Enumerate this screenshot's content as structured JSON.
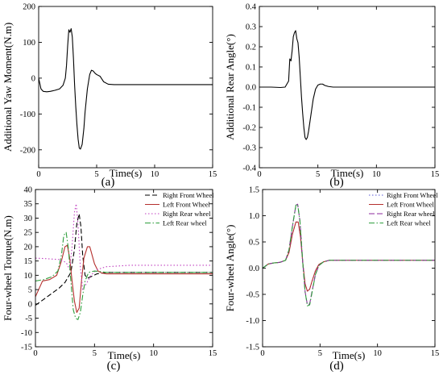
{
  "chart_data": [
    {
      "type": "line",
      "panel_label": "(a)",
      "xlabel": "Time(s)",
      "ylabel": "Additional Yaw Moment(N.m)",
      "xlim": [
        0,
        15
      ],
      "ylim": [
        -250,
        200
      ],
      "xticks": [
        0,
        5,
        10,
        15
      ],
      "yticks": [
        -200,
        -100,
        0,
        100,
        200
      ],
      "grid": false,
      "series": [
        {
          "color": "#000000",
          "dash": "",
          "x": [
            0,
            0.2,
            0.4,
            0.7,
            1.0,
            1.4,
            1.8,
            2.1,
            2.3,
            2.4,
            2.5,
            2.6,
            2.7,
            2.8,
            2.9,
            3.0,
            3.1,
            3.2,
            3.3,
            3.4,
            3.5,
            3.6,
            3.75,
            3.9,
            4.0,
            4.2,
            4.4,
            4.55,
            4.7,
            4.85,
            5.0,
            5.3,
            5.6,
            6.0,
            6.5,
            8,
            10,
            12,
            15
          ],
          "y": [
            0,
            -30,
            -37,
            -38,
            -37,
            -34,
            -30,
            -20,
            0,
            35,
            90,
            135,
            128,
            138,
            115,
            55,
            -20,
            -80,
            -130,
            -170,
            -195,
            -198,
            -185,
            -140,
            -95,
            -30,
            10,
            22,
            20,
            14,
            10,
            5,
            -10,
            -17,
            -18,
            -18,
            -18,
            -18,
            -18
          ]
        }
      ]
    },
    {
      "type": "line",
      "panel_label": "(b)",
      "xlabel": "Time(s)",
      "ylabel": "Additional Rear Angle(°)",
      "xlim": [
        0,
        15
      ],
      "ylim": [
        -0.4,
        0.4
      ],
      "xticks": [
        0,
        5,
        10,
        15
      ],
      "yticks": [
        -0.4,
        -0.3,
        -0.2,
        -0.1,
        0.0,
        0.1,
        0.2,
        0.3,
        0.4
      ],
      "grid": false,
      "series": [
        {
          "color": "#000000",
          "dash": "",
          "x": [
            0,
            1,
            1.8,
            2.2,
            2.5,
            2.6,
            2.7,
            2.8,
            2.9,
            3.0,
            3.1,
            3.2,
            3.3,
            3.4,
            3.5,
            3.6,
            3.7,
            3.8,
            3.9,
            4.0,
            4.1,
            4.2,
            4.4,
            4.6,
            4.8,
            5.0,
            5.2,
            5.4,
            5.6,
            5.9,
            6.3,
            7,
            15
          ],
          "y": [
            0,
            0,
            -0.002,
            0,
            0.03,
            0.14,
            0.13,
            0.18,
            0.25,
            0.27,
            0.28,
            0.24,
            0.22,
            0.15,
            0.05,
            -0.05,
            -0.13,
            -0.2,
            -0.25,
            -0.26,
            -0.25,
            -0.22,
            -0.14,
            -0.06,
            -0.01,
            0.01,
            0.015,
            0.015,
            0.008,
            0.003,
            0,
            0,
            0
          ]
        }
      ]
    },
    {
      "type": "line",
      "panel_label": "(c)",
      "xlabel": "Time(s)",
      "ylabel": "Four-wheel Torque(N.m)",
      "xlim": [
        0,
        15
      ],
      "ylim": [
        -15,
        40
      ],
      "xticks": [
        0,
        5,
        10,
        15
      ],
      "yticks": [
        -15,
        -10,
        -5,
        0,
        5,
        10,
        15,
        20,
        25,
        30,
        35,
        40
      ],
      "grid": false,
      "legend": "top-right",
      "series": [
        {
          "name": "Right Front Wheel",
          "color": "#000000",
          "dash": "6,3",
          "x": [
            0,
            1,
            2,
            2.5,
            3.0,
            3.3,
            3.5,
            3.7,
            3.85,
            4.0,
            4.2,
            4.4,
            4.7,
            5.2,
            6,
            8,
            10,
            15
          ],
          "y": [
            -0.5,
            2.5,
            5.5,
            7.5,
            11,
            19,
            28,
            31.5,
            27,
            17,
            10,
            9,
            9.5,
            10.5,
            11,
            11,
            11,
            11
          ]
        },
        {
          "name": "Left Front Wheel",
          "color": "#b5302e",
          "dash": "",
          "x": [
            0,
            0.6,
            1.2,
            1.8,
            2.2,
            2.5,
            2.7,
            2.9,
            3.1,
            3.3,
            3.5,
            3.7,
            3.9,
            4.1,
            4.4,
            4.6,
            4.8,
            5.0,
            5.3,
            5.6,
            6,
            7,
            9,
            15
          ],
          "y": [
            2.5,
            8,
            8.5,
            10,
            15,
            20,
            20.5,
            16,
            8,
            1,
            -3,
            -1.5,
            8,
            16,
            20,
            20,
            17,
            14,
            11.5,
            10.8,
            10.5,
            10.5,
            10.5,
            10.5
          ]
        },
        {
          "name": "Right Rear wheel",
          "color": "#c040c0",
          "dash": "1.5,2.5",
          "x": [
            0,
            1,
            2,
            2.6,
            2.9,
            3.1,
            3.3,
            3.45,
            3.6,
            3.8,
            4.0,
            4.3,
            4.7,
            5.2,
            6,
            8,
            10,
            15
          ],
          "y": [
            16,
            15.8,
            15.5,
            14.5,
            12,
            20,
            32,
            35,
            28,
            13,
            5,
            7,
            10,
            12,
            13,
            13.5,
            13.5,
            13.5
          ]
        },
        {
          "name": "Left Rear wheel",
          "color": "#2e9e3c",
          "dash": "7,2.5,1.5,2.5",
          "x": [
            0,
            0.7,
            1.4,
            1.9,
            2.2,
            2.4,
            2.6,
            2.8,
            3.0,
            3.2,
            3.4,
            3.6,
            3.8,
            4.0,
            4.2,
            4.5,
            5.0,
            5.5,
            6,
            7,
            9,
            15
          ],
          "y": [
            8,
            8.5,
            9.5,
            11.5,
            17,
            24,
            25,
            19,
            8,
            -2,
            -5,
            -5.5,
            -3,
            3,
            8,
            11,
            11.5,
            11.3,
            11,
            11,
            11,
            11
          ]
        }
      ]
    },
    {
      "type": "line",
      "panel_label": "(d)",
      "xlabel": "Time(s)",
      "ylabel": "Four-wheel Angle(°)",
      "xlim": [
        0,
        15
      ],
      "ylim": [
        -1.5,
        1.5
      ],
      "xticks": [
        0,
        5,
        10,
        15
      ],
      "yticks": [
        -1.5,
        -1.0,
        -0.5,
        0.0,
        0.5,
        1.0,
        1.5
      ],
      "grid": false,
      "legend": "top-right",
      "series": [
        {
          "name": "Right Front Wheel",
          "color": "#5a5ad8",
          "dash": "1.5,2.5",
          "x": [
            0,
            0.5,
            1,
            1.5,
            2.0,
            2.3,
            2.6,
            2.9,
            3.1,
            3.3,
            3.5,
            3.7,
            3.9,
            4.1,
            4.3,
            4.6,
            4.9,
            5.3,
            5.8,
            6.5,
            8,
            15
          ],
          "y": [
            0,
            0.08,
            0.1,
            0.11,
            0.15,
            0.3,
            0.65,
            0.88,
            0.88,
            0.6,
            0.1,
            -0.3,
            -0.44,
            -0.4,
            -0.25,
            -0.05,
            0.07,
            0.12,
            0.15,
            0.15,
            0.15,
            0.15
          ]
        },
        {
          "name": "Left Front Wheel",
          "color": "#b5302e",
          "dash": "",
          "x": [
            0,
            0.5,
            1,
            1.5,
            2.0,
            2.3,
            2.6,
            2.9,
            3.1,
            3.3,
            3.5,
            3.7,
            3.9,
            4.1,
            4.3,
            4.6,
            4.9,
            5.3,
            5.8,
            6.5,
            8,
            15
          ],
          "y": [
            0,
            0.08,
            0.1,
            0.11,
            0.15,
            0.3,
            0.65,
            0.88,
            0.88,
            0.6,
            0.1,
            -0.3,
            -0.44,
            -0.4,
            -0.25,
            -0.05,
            0.07,
            0.12,
            0.15,
            0.15,
            0.15,
            0.15
          ]
        },
        {
          "name": "Right Rear wheel",
          "color": "#8c2a9e",
          "dash": "7,3",
          "x": [
            0,
            0.5,
            1,
            1.5,
            2.0,
            2.3,
            2.6,
            2.9,
            3.05,
            3.25,
            3.5,
            3.7,
            3.9,
            4.1,
            4.3,
            4.6,
            4.9,
            5.3,
            5.8,
            6.5,
            8,
            15
          ],
          "y": [
            0,
            0.08,
            0.1,
            0.11,
            0.15,
            0.35,
            0.8,
            1.2,
            1.22,
            0.9,
            0.1,
            -0.45,
            -0.7,
            -0.68,
            -0.45,
            -0.12,
            0.05,
            0.12,
            0.15,
            0.15,
            0.15,
            0.15
          ]
        },
        {
          "name": "Left Rear wheel",
          "color": "#2e9e3c",
          "dash": "7,2.5,1.5,2.5",
          "x": [
            0,
            0.5,
            1,
            1.5,
            2.0,
            2.3,
            2.6,
            2.9,
            3.05,
            3.25,
            3.5,
            3.7,
            3.9,
            4.1,
            4.3,
            4.6,
            4.9,
            5.3,
            5.8,
            6.5,
            8,
            15
          ],
          "y": [
            0,
            0.08,
            0.1,
            0.11,
            0.15,
            0.35,
            0.8,
            1.2,
            1.22,
            0.9,
            0.1,
            -0.45,
            -0.72,
            -0.7,
            -0.47,
            -0.12,
            0.05,
            0.12,
            0.15,
            0.15,
            0.15,
            0.15
          ]
        }
      ]
    }
  ]
}
